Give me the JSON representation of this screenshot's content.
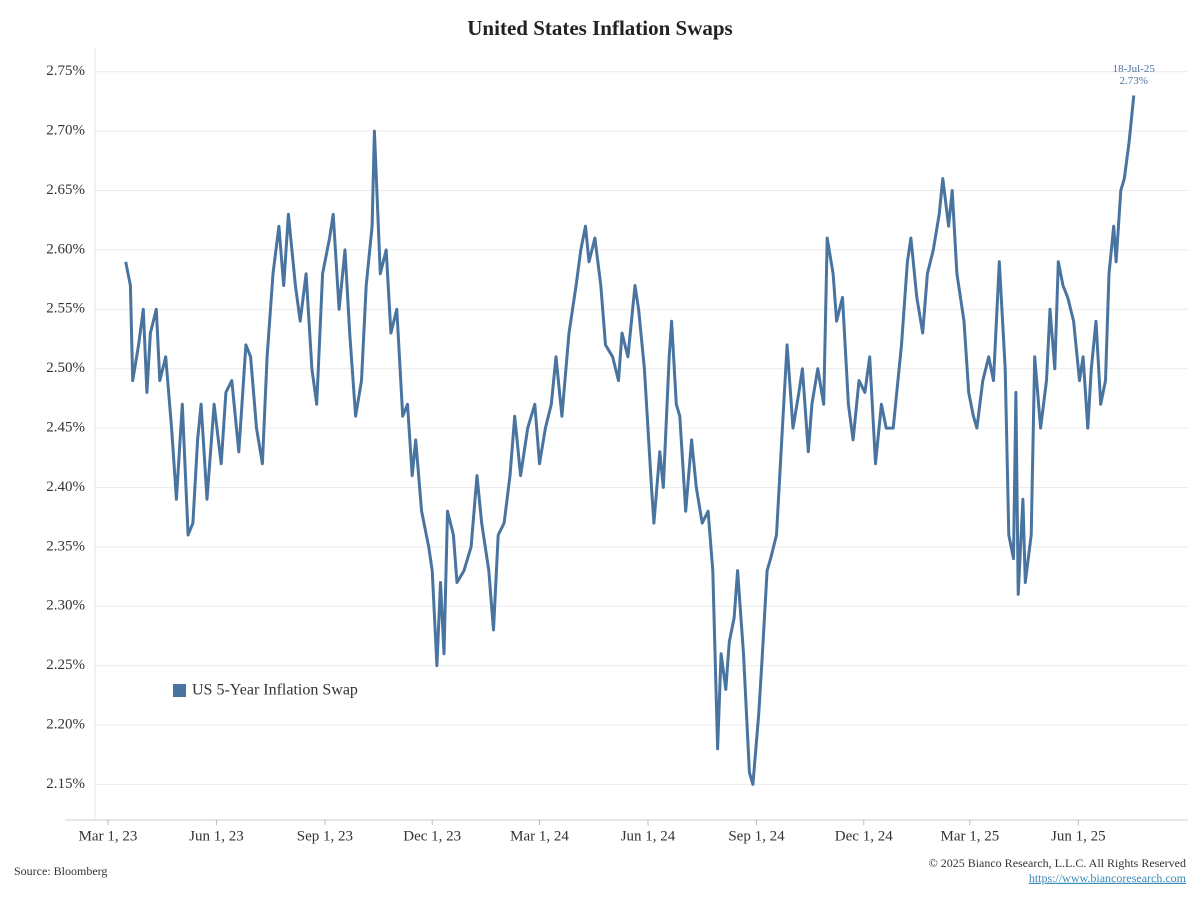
{
  "chart_data": {
    "type": "line",
    "title": "United States Inflation Swaps",
    "source": "Source: Bloomberg",
    "copyright": "© 2025 Bianco Research, L.L.C. All Rights Reserved",
    "url": "https://www.biancoresearch.com",
    "annotation": {
      "date_label": "18-Jul-25",
      "value_label": "2.73%"
    },
    "legend": "lower left",
    "grid": true,
    "xlim": [
      "2023-02-18",
      "2025-09-02"
    ],
    "xticks": [
      {
        "value": "2023-03-01",
        "label": "Mar 1, 23"
      },
      {
        "value": "2023-06-01",
        "label": "Jun 1, 23"
      },
      {
        "value": "2023-09-01",
        "label": "Sep 1, 23"
      },
      {
        "value": "2023-12-01",
        "label": "Dec 1, 23"
      },
      {
        "value": "2024-03-01",
        "label": "Mar 1, 24"
      },
      {
        "value": "2024-06-01",
        "label": "Jun 1, 24"
      },
      {
        "value": "2024-09-01",
        "label": "Sep 1, 24"
      },
      {
        "value": "2024-12-01",
        "label": "Dec 1, 24"
      },
      {
        "value": "2025-03-01",
        "label": "Mar 1, 25"
      },
      {
        "value": "2025-06-01",
        "label": "Jun 1, 25"
      }
    ],
    "ylim": [
      2.12,
      2.77
    ],
    "yticks": [
      {
        "value": 2.15,
        "label": "2.15%"
      },
      {
        "value": 2.2,
        "label": "2.20%"
      },
      {
        "value": 2.25,
        "label": "2.25%"
      },
      {
        "value": 2.3,
        "label": "2.30%"
      },
      {
        "value": 2.35,
        "label": "2.35%"
      },
      {
        "value": 2.4,
        "label": "2.40%"
      },
      {
        "value": 2.45,
        "label": "2.45%"
      },
      {
        "value": 2.5,
        "label": "2.50%"
      },
      {
        "value": 2.55,
        "label": "2.55%"
      },
      {
        "value": 2.6,
        "label": "2.60%"
      },
      {
        "value": 2.65,
        "label": "2.65%"
      },
      {
        "value": 2.7,
        "label": "2.70%"
      },
      {
        "value": 2.75,
        "label": "2.75%"
      }
    ],
    "x": [
      "2023-03-16",
      "2023-03-20",
      "2023-03-22",
      "2023-03-27",
      "2023-03-31",
      "2023-04-03",
      "2023-04-06",
      "2023-04-11",
      "2023-04-14",
      "2023-04-19",
      "2023-04-24",
      "2023-04-28",
      "2023-05-03",
      "2023-05-08",
      "2023-05-12",
      "2023-05-16",
      "2023-05-19",
      "2023-05-24",
      "2023-05-30",
      "2023-06-05",
      "2023-06-09",
      "2023-06-14",
      "2023-06-20",
      "2023-06-26",
      "2023-06-30",
      "2023-07-05",
      "2023-07-10",
      "2023-07-14",
      "2023-07-19",
      "2023-07-24",
      "2023-07-28",
      "2023-08-01",
      "2023-08-07",
      "2023-08-11",
      "2023-08-16",
      "2023-08-21",
      "2023-08-25",
      "2023-08-30",
      "2023-09-05",
      "2023-09-08",
      "2023-09-13",
      "2023-09-18",
      "2023-09-22",
      "2023-09-27",
      "2023-10-02",
      "2023-10-06",
      "2023-10-11",
      "2023-10-13",
      "2023-10-18",
      "2023-10-23",
      "2023-10-27",
      "2023-11-01",
      "2023-11-06",
      "2023-11-10",
      "2023-11-14",
      "2023-11-17",
      "2023-11-22",
      "2023-11-28",
      "2023-12-01",
      "2023-12-05",
      "2023-12-08",
      "2023-12-11",
      "2023-12-14",
      "2023-12-19",
      "2023-12-22",
      "2023-12-28",
      "2024-01-03",
      "2024-01-08",
      "2024-01-12",
      "2024-01-18",
      "2024-01-22",
      "2024-01-26",
      "2024-01-31",
      "2024-02-05",
      "2024-02-09",
      "2024-02-14",
      "2024-02-20",
      "2024-02-26",
      "2024-03-01",
      "2024-03-06",
      "2024-03-11",
      "2024-03-15",
      "2024-03-20",
      "2024-03-26",
      "2024-04-01",
      "2024-04-05",
      "2024-04-09",
      "2024-04-12",
      "2024-04-17",
      "2024-04-22",
      "2024-04-26",
      "2024-05-02",
      "2024-05-07",
      "2024-05-10",
      "2024-05-15",
      "2024-05-21",
      "2024-05-24",
      "2024-05-29",
      "2024-06-04",
      "2024-06-06",
      "2024-06-11",
      "2024-06-14",
      "2024-06-19",
      "2024-06-21",
      "2024-06-25",
      "2024-06-28",
      "2024-07-03",
      "2024-07-08",
      "2024-07-12",
      "2024-07-17",
      "2024-07-22",
      "2024-07-26",
      "2024-07-30",
      "2024-08-02",
      "2024-08-06",
      "2024-08-09",
      "2024-08-13",
      "2024-08-16",
      "2024-08-21",
      "2024-08-26",
      "2024-08-29",
      "2024-09-03",
      "2024-09-06",
      "2024-09-10",
      "2024-09-13",
      "2024-09-18",
      "2024-09-23",
      "2024-09-27",
      "2024-10-02",
      "2024-10-07",
      "2024-10-10",
      "2024-10-15",
      "2024-10-18",
      "2024-10-23",
      "2024-10-28",
      "2024-10-31",
      "2024-11-05",
      "2024-11-08",
      "2024-11-13",
      "2024-11-18",
      "2024-11-22",
      "2024-11-27",
      "2024-12-02",
      "2024-12-06",
      "2024-12-11",
      "2024-12-16",
      "2024-12-20",
      "2024-12-26",
      "2025-01-02",
      "2025-01-07",
      "2025-01-10",
      "2025-01-15",
      "2025-01-20",
      "2025-01-24",
      "2025-01-29",
      "2025-02-03",
      "2025-02-06",
      "2025-02-11",
      "2025-02-14",
      "2025-02-18",
      "2025-02-24",
      "2025-02-28",
      "2025-03-04",
      "2025-03-07",
      "2025-03-12",
      "2025-03-17",
      "2025-03-21",
      "2025-03-26",
      "2025-03-31",
      "2025-04-03",
      "2025-04-07",
      "2025-04-09",
      "2025-04-11",
      "2025-04-15",
      "2025-04-17",
      "2025-04-22",
      "2025-04-25",
      "2025-04-30",
      "2025-05-05",
      "2025-05-08",
      "2025-05-12",
      "2025-05-15",
      "2025-05-19",
      "2025-05-23",
      "2025-05-28",
      "2025-06-02",
      "2025-06-05",
      "2025-06-09",
      "2025-06-12",
      "2025-06-16",
      "2025-06-20",
      "2025-06-24",
      "2025-06-27",
      "2025-07-01",
      "2025-07-03",
      "2025-07-07",
      "2025-07-10",
      "2025-07-14",
      "2025-07-18"
    ],
    "series": [
      {
        "name": "US 5-Year Inflation Swap",
        "color": "#4a74a0",
        "values": [
          2.59,
          2.57,
          2.49,
          2.52,
          2.55,
          2.48,
          2.53,
          2.55,
          2.49,
          2.51,
          2.45,
          2.39,
          2.47,
          2.36,
          2.37,
          2.44,
          2.47,
          2.39,
          2.47,
          2.42,
          2.48,
          2.49,
          2.43,
          2.52,
          2.51,
          2.45,
          2.42,
          2.51,
          2.58,
          2.62,
          2.57,
          2.63,
          2.57,
          2.54,
          2.58,
          2.5,
          2.47,
          2.58,
          2.61,
          2.63,
          2.55,
          2.6,
          2.53,
          2.46,
          2.49,
          2.57,
          2.62,
          2.7,
          2.58,
          2.6,
          2.53,
          2.55,
          2.46,
          2.47,
          2.41,
          2.44,
          2.38,
          2.35,
          2.33,
          2.25,
          2.32,
          2.26,
          2.38,
          2.36,
          2.32,
          2.33,
          2.35,
          2.41,
          2.37,
          2.33,
          2.28,
          2.36,
          2.37,
          2.41,
          2.46,
          2.41,
          2.45,
          2.47,
          2.42,
          2.45,
          2.47,
          2.51,
          2.46,
          2.53,
          2.57,
          2.6,
          2.62,
          2.59,
          2.61,
          2.57,
          2.52,
          2.51,
          2.49,
          2.53,
          2.51,
          2.57,
          2.55,
          2.5,
          2.4,
          2.37,
          2.43,
          2.4,
          2.51,
          2.54,
          2.47,
          2.46,
          2.38,
          2.44,
          2.4,
          2.37,
          2.38,
          2.33,
          2.18,
          2.26,
          2.23,
          2.27,
          2.29,
          2.33,
          2.26,
          2.16,
          2.15,
          2.21,
          2.26,
          2.33,
          2.34,
          2.36,
          2.45,
          2.52,
          2.45,
          2.48,
          2.5,
          2.43,
          2.47,
          2.5,
          2.47,
          2.61,
          2.58,
          2.54,
          2.56,
          2.47,
          2.44,
          2.49,
          2.48,
          2.51,
          2.42,
          2.47,
          2.45,
          2.45,
          2.52,
          2.59,
          2.61,
          2.56,
          2.53,
          2.58,
          2.6,
          2.63,
          2.66,
          2.62,
          2.65,
          2.58,
          2.54,
          2.48,
          2.46,
          2.45,
          2.49,
          2.51,
          2.49,
          2.59,
          2.5,
          2.36,
          2.34,
          2.48,
          2.31,
          2.39,
          2.32,
          2.36,
          2.51,
          2.45,
          2.49,
          2.55,
          2.5,
          2.59,
          2.57,
          2.56,
          2.54,
          2.49,
          2.51,
          2.45,
          2.5,
          2.54,
          2.47,
          2.49,
          2.58,
          2.62,
          2.59,
          2.65,
          2.66,
          2.69,
          2.73
        ]
      }
    ]
  }
}
